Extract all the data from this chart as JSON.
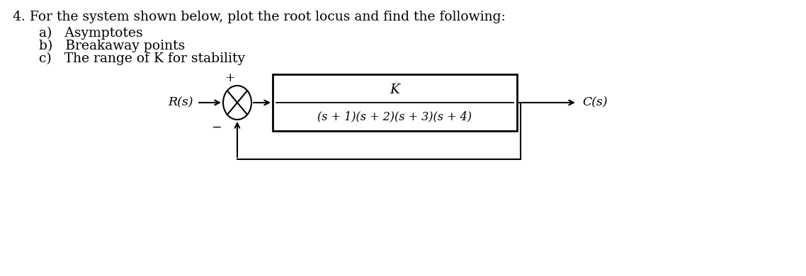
{
  "title_line": "4. For the system shown below, plot the root locus and find the following:",
  "item_a": "a)   Asymptotes",
  "item_b": "b)   Breakaway points",
  "item_c": "c)   The range of K for stability",
  "rs_label": "R(s)",
  "cs_label": "C(s)",
  "plus_label": "+",
  "minus_label": "−",
  "tf_numerator": "K",
  "tf_denominator": "(s + 1)(s + 2)(s + 3)(s + 4)",
  "text_color": "#000000",
  "bg_color": "#ffffff",
  "title_fontsize": 13.5,
  "item_fontsize": 13.5,
  "diagram_fontsize": 12.5,
  "diagram_fontsize_small": 11.5
}
